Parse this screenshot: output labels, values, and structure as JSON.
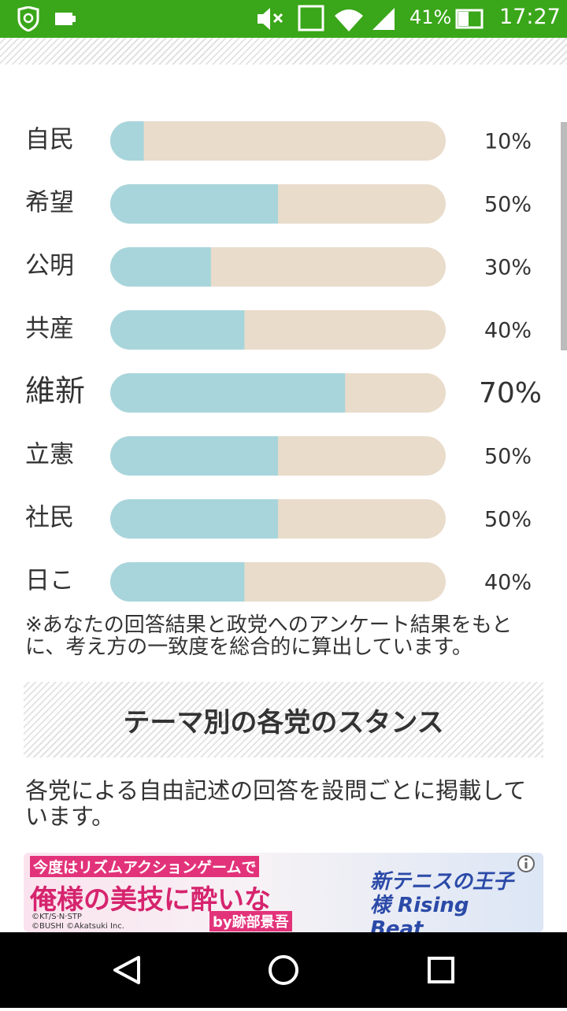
{
  "status_bar": {
    "battery": "41%",
    "time": "17:27"
  },
  "chart_data": {
    "type": "bar",
    "categories": [
      "自民",
      "希望",
      "公明",
      "共産",
      "維新",
      "立憲",
      "社民",
      "日こ"
    ],
    "values": [
      10,
      50,
      30,
      40,
      70,
      50,
      50,
      40
    ],
    "value_labels": [
      "10%",
      "50%",
      "30%",
      "40%",
      "70%",
      "50%",
      "50%",
      "40%"
    ],
    "xlim": [
      0,
      100
    ],
    "color": "#a8d5dc",
    "track_color": "#e9dccb"
  },
  "note": "※あなたの回答結果と政党へのアンケート結果をもとに、考え方の一致度を総合的に算出しています。",
  "section": {
    "title": "テーマ別の各党のスタンス",
    "description": "各党による自由記述の回答を設問ごとに掲載しています。"
  },
  "ad": {
    "headline": "今度はリズムアクションゲームで",
    "catch": "俺様の美技に酔いな",
    "by": "by跡部景吾",
    "copyright_1": "©KT/S·N·STP",
    "copyright_2": "©BUSHI ©Akatsuki Inc.",
    "logo": "新テニスの王子様 Rising Beat"
  }
}
